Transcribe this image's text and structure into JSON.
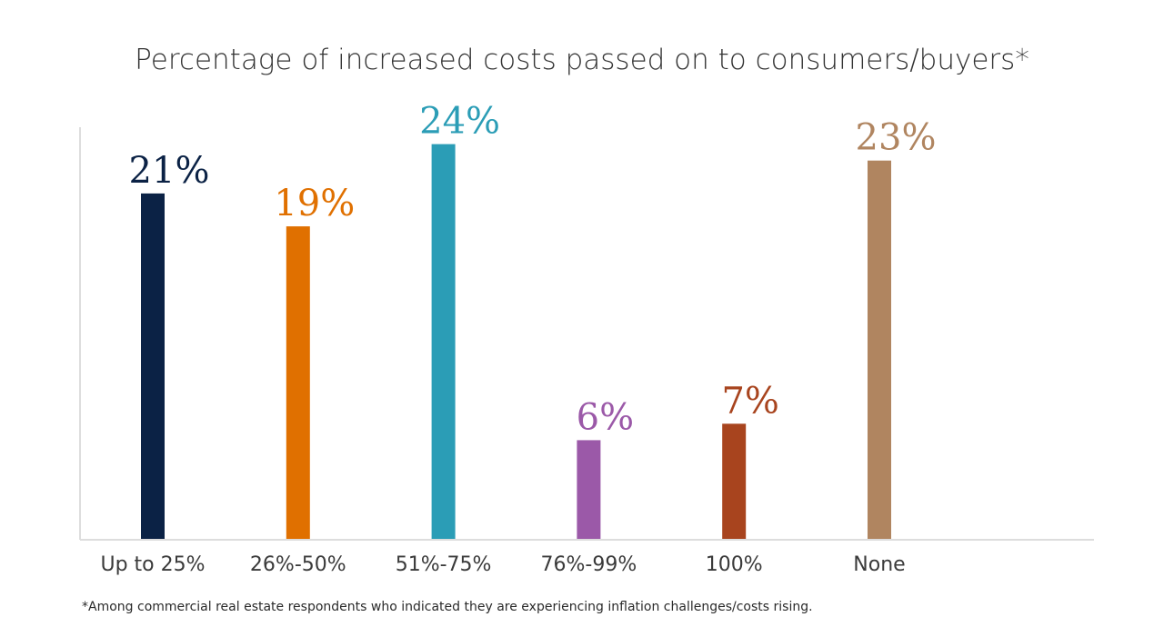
{
  "chart_data": {
    "type": "bar",
    "title": "Percentage of increased costs passed on to consumers/buyers*",
    "xlabel": "",
    "ylabel": "",
    "categories": [
      "Up to 25%",
      "26%-50%",
      "51%-75%",
      "76%-99%",
      "100%",
      "None"
    ],
    "values": [
      21,
      19,
      24,
      6,
      7,
      23
    ],
    "value_labels": [
      "21%",
      "19%",
      "24%",
      "6%",
      "7%",
      "23%"
    ],
    "colors": [
      "#0b2245",
      "#e07000",
      "#2b9db6",
      "#9b59a8",
      "#a8441e",
      "#b08560"
    ],
    "ylim": [
      0,
      25
    ],
    "grid": false,
    "legend": "none",
    "footnote": "*Among commercial real estate respondents who indicated they are experiencing inflation challenges/costs rising."
  }
}
